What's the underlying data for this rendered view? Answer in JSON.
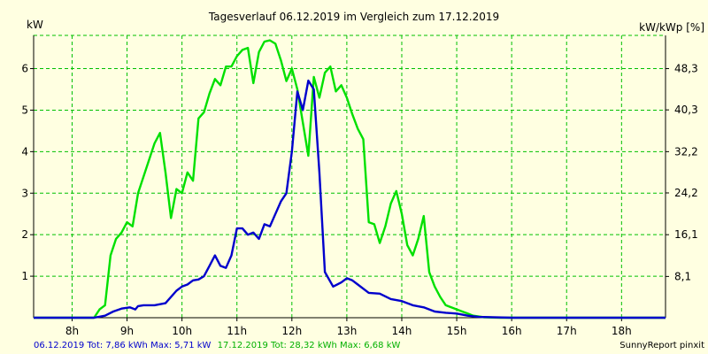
{
  "chart_data": {
    "type": "line",
    "title": "Tagesverlauf 06.12.2019 im Vergleich zum 17.12.2019",
    "ylabel_left": "kW",
    "ylabel_right": "kW/kWp [%]",
    "x_ticks": [
      "8h",
      "9h",
      "10h",
      "11h",
      "12h",
      "13h",
      "14h",
      "15h",
      "16h",
      "17h",
      "18h"
    ],
    "x_tick_values": [
      8,
      9,
      10,
      11,
      12,
      13,
      14,
      15,
      16,
      17,
      18
    ],
    "xlim": [
      7.3,
      18.8
    ],
    "ylim": [
      0,
      6.8
    ],
    "y_ticks": [
      1,
      2,
      3,
      4,
      5,
      6
    ],
    "y_right_ticks": [
      "8,1",
      "16,1",
      "24,2",
      "32,2",
      "40,3",
      "48,3"
    ],
    "y_right_tick_values": [
      0.994,
      2.0,
      3.006,
      4.0,
      5.006,
      6.0
    ],
    "grid": true,
    "colors": {
      "background": "#ffffe1",
      "grid": "#00c000",
      "axis": "#000000",
      "series1": "#0000cc",
      "series2": "#00e000",
      "footer_series1": "#0000cc",
      "footer_series2": "#00b000",
      "footer_credit": "#000000"
    },
    "series": [
      {
        "name": "06.12.2019",
        "color": "#0000cc",
        "x": [
          7.3,
          8.4,
          8.6,
          8.75,
          8.9,
          9.05,
          9.15,
          9.2,
          9.3,
          9.5,
          9.7,
          9.9,
          10.0,
          10.1,
          10.2,
          10.3,
          10.4,
          10.5,
          10.6,
          10.7,
          10.8,
          10.9,
          11.0,
          11.1,
          11.2,
          11.3,
          11.4,
          11.5,
          11.6,
          11.7,
          11.8,
          11.9,
          12.0,
          12.1,
          12.2,
          12.3,
          12.4,
          12.5,
          12.6,
          12.75,
          12.9,
          13.0,
          13.1,
          13.2,
          13.4,
          13.6,
          13.8,
          14.0,
          14.2,
          14.4,
          14.6,
          14.8,
          15.0,
          15.2,
          15.4,
          16.0,
          18.8
        ],
        "y": [
          0,
          0,
          0.05,
          0.15,
          0.22,
          0.25,
          0.2,
          0.28,
          0.3,
          0.3,
          0.35,
          0.65,
          0.75,
          0.8,
          0.9,
          0.92,
          1.0,
          1.25,
          1.5,
          1.25,
          1.2,
          1.5,
          2.15,
          2.15,
          2.0,
          2.05,
          1.9,
          2.25,
          2.2,
          2.5,
          2.8,
          3.0,
          4.0,
          5.45,
          5.0,
          5.71,
          5.5,
          3.5,
          1.1,
          0.75,
          0.85,
          0.95,
          0.9,
          0.8,
          0.6,
          0.58,
          0.45,
          0.4,
          0.3,
          0.25,
          0.15,
          0.12,
          0.1,
          0.05,
          0.02,
          0,
          0
        ]
      },
      {
        "name": "17.12.2019",
        "color": "#00e000",
        "x": [
          7.3,
          8.4,
          8.5,
          8.6,
          8.7,
          8.8,
          8.9,
          9.0,
          9.1,
          9.2,
          9.3,
          9.4,
          9.5,
          9.6,
          9.7,
          9.8,
          9.9,
          10.0,
          10.1,
          10.2,
          10.3,
          10.4,
          10.5,
          10.6,
          10.7,
          10.8,
          10.9,
          11.0,
          11.1,
          11.2,
          11.3,
          11.4,
          11.5,
          11.6,
          11.7,
          11.8,
          11.9,
          12.0,
          12.1,
          12.2,
          12.3,
          12.4,
          12.5,
          12.6,
          12.7,
          12.8,
          12.9,
          13.0,
          13.1,
          13.2,
          13.3,
          13.4,
          13.5,
          13.6,
          13.7,
          13.8,
          13.9,
          14.0,
          14.1,
          14.2,
          14.3,
          14.4,
          14.5,
          14.6,
          14.7,
          14.8,
          14.9,
          15.0,
          15.1,
          15.2,
          15.3,
          15.5,
          15.8,
          16.0,
          16.2,
          16.5,
          16.9,
          18.8
        ],
        "y": [
          0,
          0,
          0.2,
          0.3,
          1.5,
          1.9,
          2.05,
          2.3,
          2.2,
          3.0,
          3.4,
          3.8,
          4.2,
          4.45,
          3.5,
          2.4,
          3.1,
          3.0,
          3.5,
          3.3,
          4.8,
          4.95,
          5.4,
          5.75,
          5.6,
          6.05,
          6.05,
          6.3,
          6.45,
          6.5,
          5.65,
          6.4,
          6.65,
          6.68,
          6.6,
          6.2,
          5.7,
          6.0,
          5.5,
          4.7,
          3.9,
          5.8,
          5.3,
          5.9,
          6.05,
          5.45,
          5.6,
          5.3,
          4.9,
          4.55,
          4.3,
          2.3,
          2.25,
          1.8,
          2.2,
          2.75,
          3.05,
          2.5,
          1.75,
          1.5,
          1.9,
          2.45,
          1.1,
          0.75,
          0.5,
          0.3,
          0.25,
          0.2,
          0.15,
          0.1,
          0.05,
          0.01,
          0,
          0,
          0,
          0,
          0,
          0
        ]
      }
    ]
  },
  "footer": {
    "series1": "06.12.2019 Tot: 7,86 kWh Max: 5,71 kW",
    "series2": "17.12.2019 Tot: 28,32 kWh Max: 6,68 kW",
    "credit": "SunnyReport pinxit"
  }
}
